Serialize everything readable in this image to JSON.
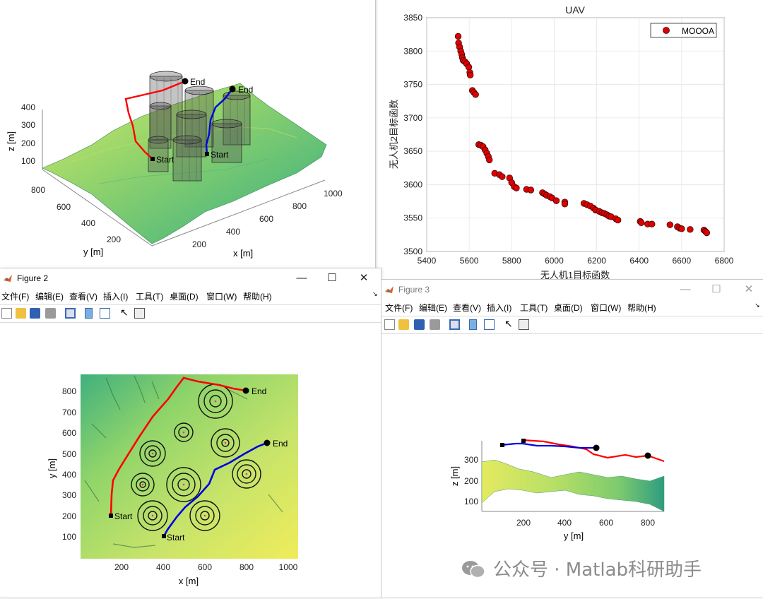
{
  "figure1": {
    "axis_z_ticks": [
      "400",
      "300",
      "200",
      "100"
    ],
    "axis_y_ticks": [
      "800",
      "600",
      "400",
      "200"
    ],
    "axis_x_ticks": [
      "200",
      "400",
      "600",
      "800",
      "1000"
    ],
    "z_label": "z [m]",
    "y_label": "y [m]",
    "x_label": "x [m]",
    "label_start_1": "Start",
    "label_start_2": "Start",
    "label_end_1": "End",
    "label_end_2": "End"
  },
  "pareto": {
    "chart_data": {
      "type": "scatter",
      "title": "UAV",
      "xlabel": "无人机1目标函数",
      "ylabel": "无人机2目标函数",
      "xlim": [
        5400,
        6800
      ],
      "ylim": [
        3500,
        3850
      ],
      "xticks": [
        "5400",
        "5600",
        "5800",
        "6000",
        "6200",
        "6400",
        "6600",
        "6800"
      ],
      "yticks": [
        "3850",
        "3800",
        "3750",
        "3700",
        "3650",
        "3600",
        "3550",
        "3500"
      ],
      "legend": "MOOOA",
      "legend_position": "top-right",
      "color": "#e00000",
      "points": [
        [
          5548,
          3822
        ],
        [
          5550,
          3812
        ],
        [
          5555,
          3806
        ],
        [
          5560,
          3800
        ],
        [
          5565,
          3795
        ],
        [
          5568,
          3790
        ],
        [
          5572,
          3786
        ],
        [
          5580,
          3784
        ],
        [
          5588,
          3781
        ],
        [
          5598,
          3776
        ],
        [
          5603,
          3768
        ],
        [
          5605,
          3764
        ],
        [
          5615,
          3741
        ],
        [
          5622,
          3738
        ],
        [
          5630,
          3735
        ],
        [
          5645,
          3660
        ],
        [
          5655,
          3659
        ],
        [
          5665,
          3657
        ],
        [
          5675,
          3652
        ],
        [
          5683,
          3647
        ],
        [
          5690,
          3642
        ],
        [
          5695,
          3637
        ],
        [
          5720,
          3617
        ],
        [
          5742,
          3615
        ],
        [
          5755,
          3612
        ],
        [
          5790,
          3610
        ],
        [
          5800,
          3603
        ],
        [
          5812,
          3597
        ],
        [
          5822,
          3595
        ],
        [
          5870,
          3593
        ],
        [
          5890,
          3592
        ],
        [
          5945,
          3588
        ],
        [
          5955,
          3586
        ],
        [
          5965,
          3584
        ],
        [
          5980,
          3582
        ],
        [
          5990,
          3580
        ],
        [
          6010,
          3576
        ],
        [
          6050,
          3574
        ],
        [
          6050,
          3571
        ],
        [
          6140,
          3572
        ],
        [
          6155,
          3570
        ],
        [
          6170,
          3568
        ],
        [
          6185,
          3565
        ],
        [
          6195,
          3562
        ],
        [
          6212,
          3560
        ],
        [
          6225,
          3558
        ],
        [
          6235,
          3557
        ],
        [
          6248,
          3555
        ],
        [
          6258,
          3553
        ],
        [
          6268,
          3552
        ],
        [
          6290,
          3549
        ],
        [
          6300,
          3547
        ],
        [
          6405,
          3545
        ],
        [
          6410,
          3543
        ],
        [
          6440,
          3541
        ],
        [
          6460,
          3541
        ],
        [
          6545,
          3540
        ],
        [
          6580,
          3537
        ],
        [
          6590,
          3535
        ],
        [
          6600,
          3534
        ],
        [
          6640,
          3533
        ],
        [
          6705,
          3532
        ],
        [
          6712,
          3530
        ],
        [
          6718,
          3528
        ]
      ]
    }
  },
  "figure2": {
    "title": "Figure 2",
    "menu": [
      "文件(F)",
      "编辑(E)",
      "查看(V)",
      "插入(I)",
      "工具(T)",
      "桌面(D)",
      "窗口(W)",
      "帮助(H)"
    ],
    "window_controls": {
      "minimize": "—",
      "maximize": "☐",
      "close": "✕"
    },
    "y_ticks": [
      "800",
      "700",
      "600",
      "500",
      "400",
      "300",
      "200",
      "100"
    ],
    "x_ticks": [
      "200",
      "400",
      "600",
      "800",
      "1000"
    ],
    "x_label": "x [m]",
    "y_label": "y [m]",
    "label_start_1": "Start",
    "label_start_2": "Start",
    "label_end_1": "End",
    "label_end_2": "End"
  },
  "figure3": {
    "title": "Figure 3",
    "menu": [
      "文件(F)",
      "编辑(E)",
      "查看(V)",
      "插入(I)",
      "工具(T)",
      "桌面(D)",
      "窗口(W)",
      "帮助(H)"
    ],
    "window_controls": {
      "minimize": "—",
      "maximize": "☐",
      "close": "✕"
    },
    "z_ticks": [
      "300",
      "200",
      "100"
    ],
    "y_ticks": [
      "200",
      "400",
      "600",
      "800"
    ],
    "z_label": "z [m]",
    "y_label": "y [m]"
  },
  "watermark": {
    "text": "公众号 · Matlab科研助手"
  },
  "colors": {
    "path1": "#ff0000",
    "path2": "#0000e0",
    "terrain_light": "#e8ea6a",
    "terrain_mid": "#8fd16a",
    "terrain_dark": "#2a9a7a"
  }
}
